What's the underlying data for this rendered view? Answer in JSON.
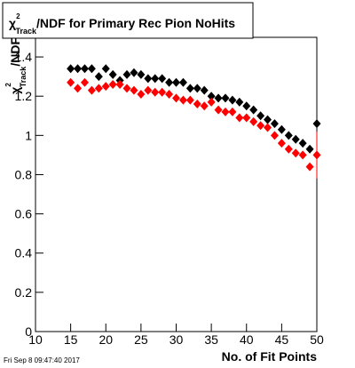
{
  "chart_data": {
    "type": "scatter",
    "title": {
      "symbol": "χ",
      "sup": "2",
      "sub": "Track",
      "text": "/NDF for Primary Rec Pion NoHits"
    },
    "y_label": {
      "symbol": "χ",
      "sup": "2",
      "sub": "Track",
      "text": "/NDF"
    },
    "x_label": "No. of Fit Points",
    "timestamp": "Fri Sep  8 09:47:40 2017",
    "x": [
      15,
      16,
      17,
      18,
      19,
      20,
      21,
      22,
      23,
      24,
      25,
      26,
      27,
      28,
      29,
      30,
      31,
      32,
      33,
      34,
      35,
      36,
      37,
      38,
      39,
      40,
      41,
      42,
      43,
      44,
      45,
      46,
      47,
      48,
      49,
      50
    ],
    "series": [
      {
        "color": "#000000",
        "values": [
          1.34,
          1.34,
          1.34,
          1.34,
          1.3,
          1.34,
          1.31,
          1.28,
          1.31,
          1.32,
          1.31,
          1.29,
          1.29,
          1.29,
          1.27,
          1.27,
          1.27,
          1.24,
          1.24,
          1.23,
          1.2,
          1.19,
          1.19,
          1.18,
          1.17,
          1.15,
          1.13,
          1.1,
          1.08,
          1.06,
          1.03,
          1.0,
          0.98,
          0.96,
          0.93,
          1.06
        ],
        "errors": [
          null,
          null,
          null,
          null,
          null,
          null,
          null,
          null,
          null,
          null,
          null,
          null,
          null,
          null,
          null,
          null,
          null,
          null,
          null,
          null,
          null,
          null,
          null,
          null,
          null,
          null,
          null,
          null,
          null,
          null,
          null,
          null,
          null,
          null,
          null,
          0.09
        ]
      },
      {
        "color": "#ff0000",
        "values": [
          1.27,
          1.24,
          1.27,
          1.23,
          1.24,
          1.25,
          1.26,
          1.26,
          1.24,
          1.23,
          1.21,
          1.23,
          1.22,
          1.22,
          1.21,
          1.19,
          1.18,
          1.18,
          1.16,
          1.15,
          1.17,
          1.13,
          1.12,
          1.12,
          1.09,
          1.09,
          1.07,
          1.05,
          1.04,
          1.0,
          0.96,
          0.93,
          0.91,
          0.9,
          0.84,
          0.9
        ],
        "errors": [
          null,
          null,
          null,
          null,
          null,
          null,
          null,
          null,
          null,
          null,
          null,
          null,
          null,
          null,
          null,
          null,
          null,
          null,
          null,
          null,
          null,
          null,
          null,
          null,
          null,
          null,
          null,
          null,
          null,
          null,
          null,
          null,
          null,
          null,
          null,
          0.12
        ]
      }
    ],
    "xlim": [
      10,
      50
    ],
    "ylim": [
      0,
      1.5
    ],
    "xticks": [
      10,
      15,
      20,
      25,
      30,
      35,
      40,
      45,
      50
    ],
    "yticks": [
      0,
      0.2,
      0.4,
      0.6,
      0.8,
      1,
      1.2,
      1.4
    ]
  }
}
